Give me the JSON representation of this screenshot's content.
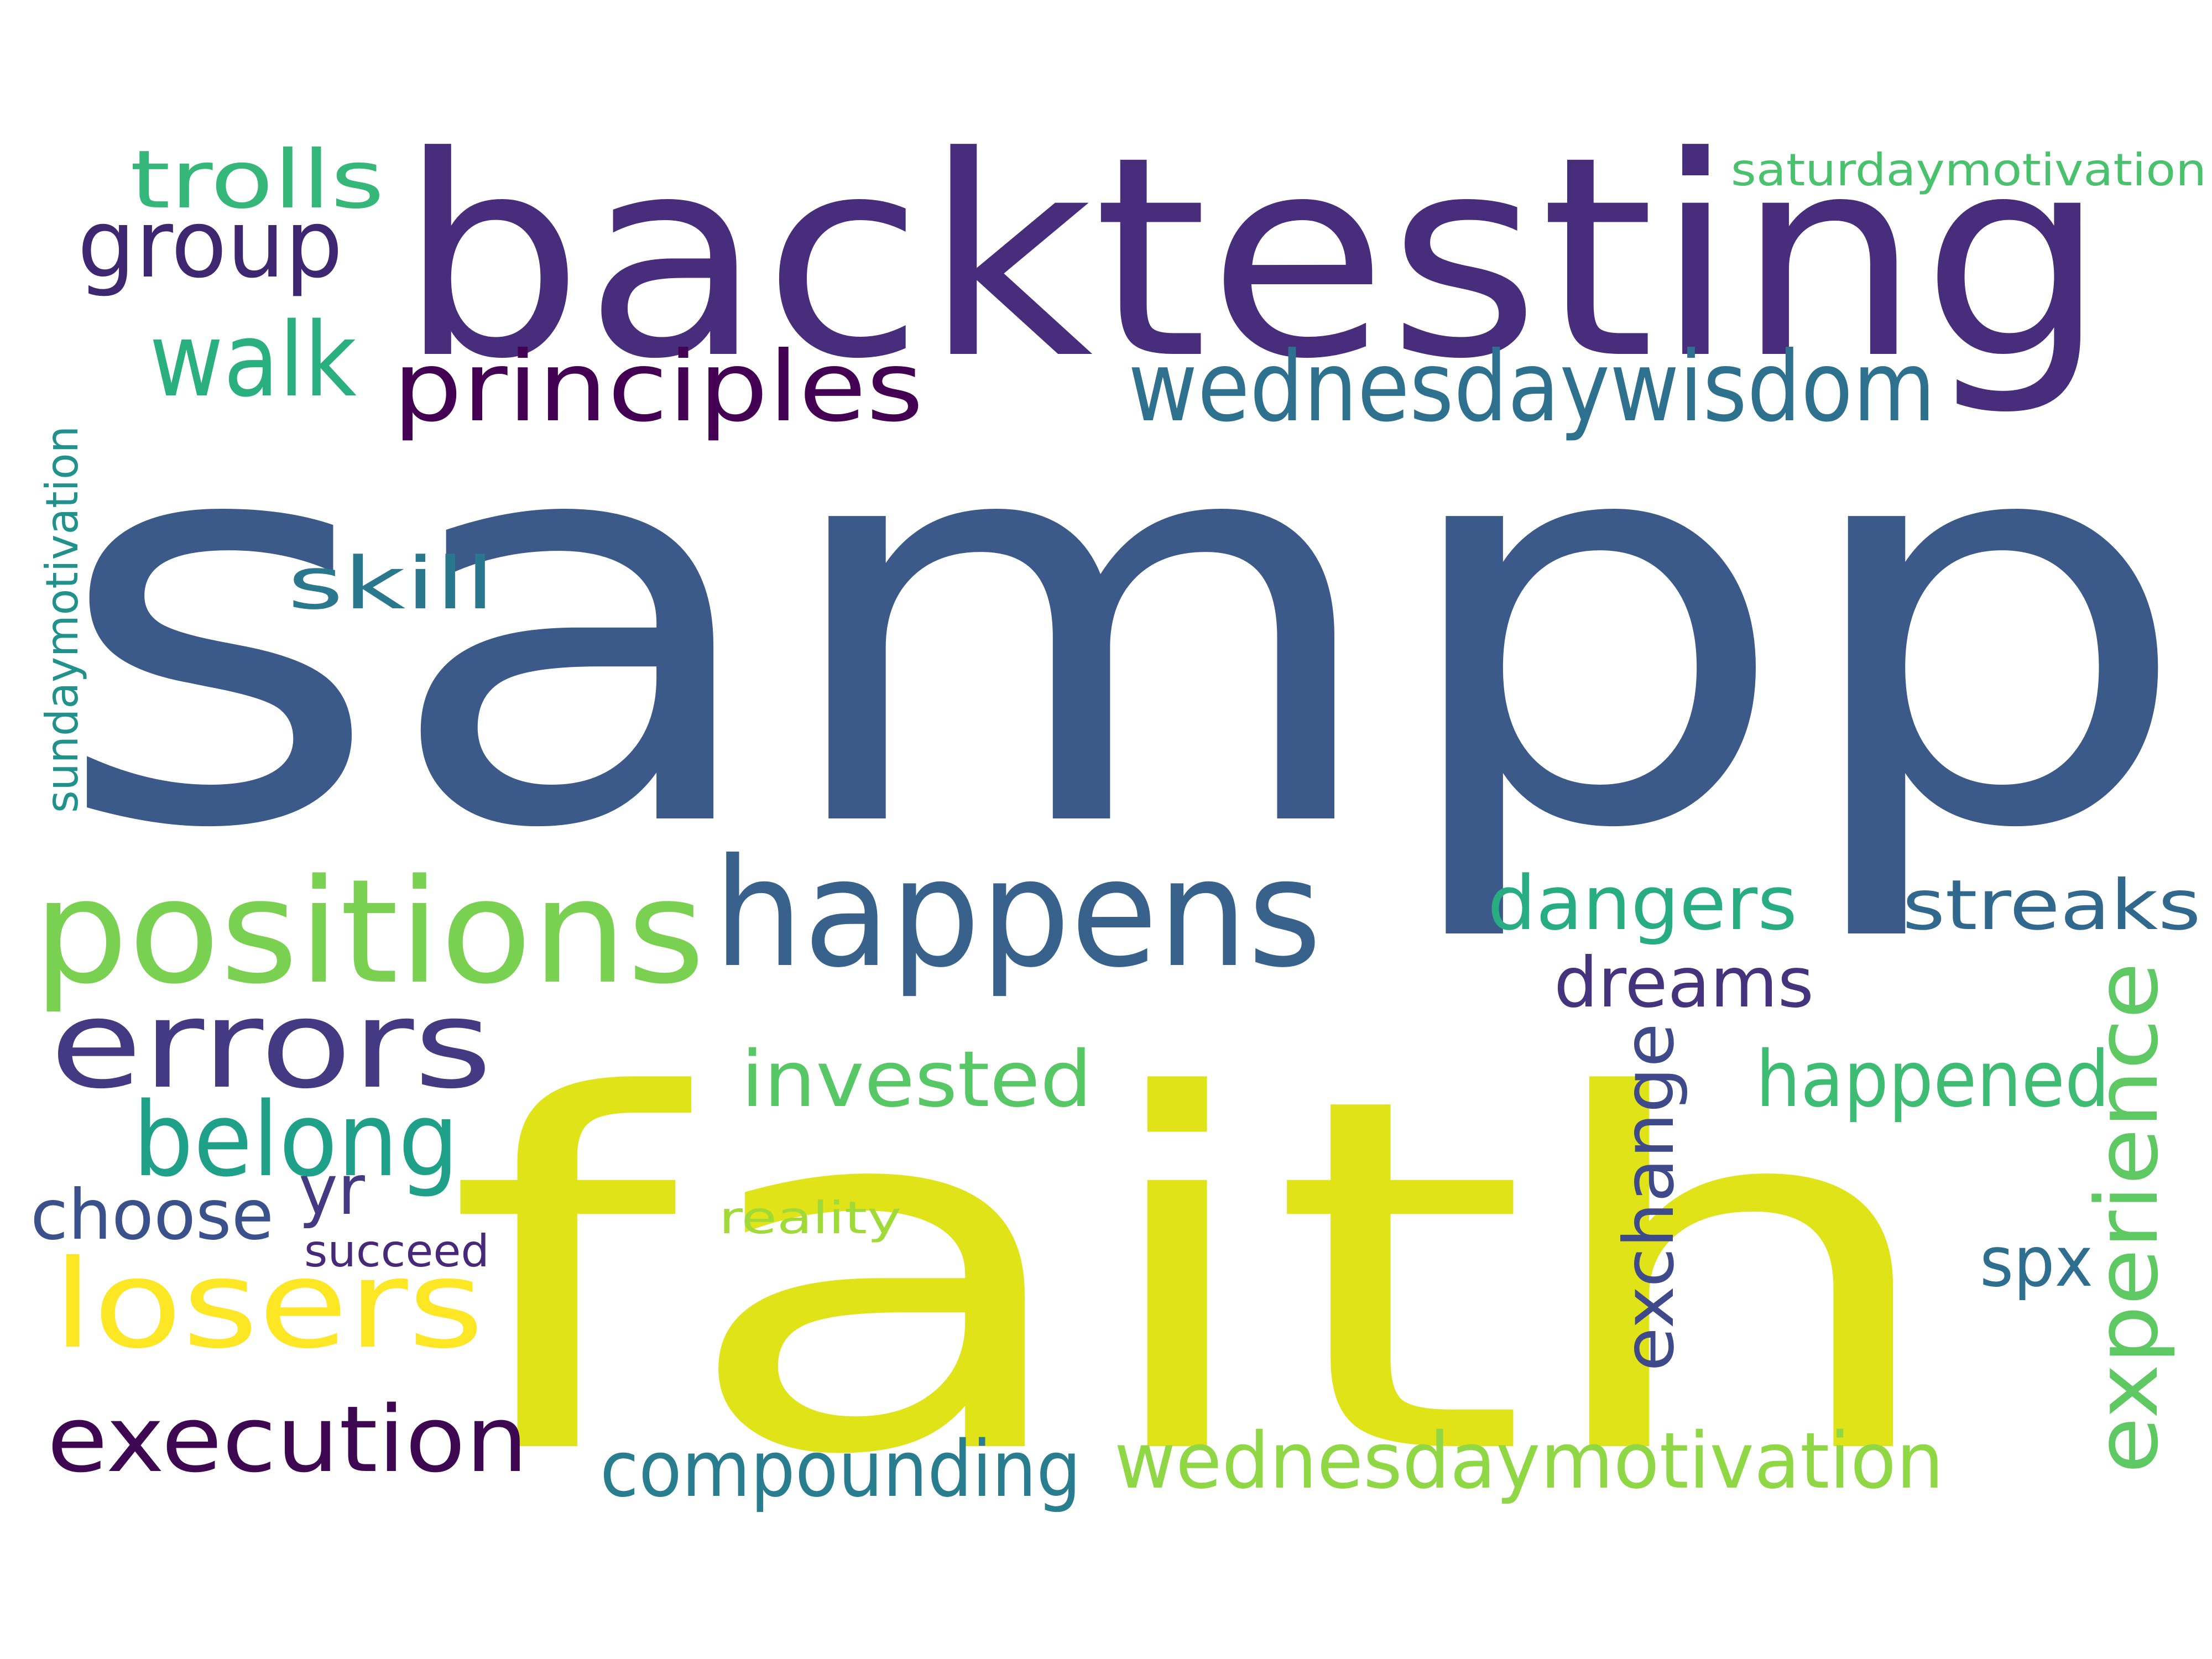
{
  "words": [
    {
      "text": "sampp",
      "color": "#3b5a8a",
      "orientation": "horizontal"
    },
    {
      "text": "faith",
      "color": "#dfe318",
      "orientation": "horizontal"
    },
    {
      "text": "backtesting",
      "color": "#472d7b",
      "orientation": "horizontal"
    },
    {
      "text": "happens",
      "color": "#38618c",
      "orientation": "horizontal"
    },
    {
      "text": "positions",
      "color": "#7ad151",
      "orientation": "horizontal"
    },
    {
      "text": "errors",
      "color": "#443a83",
      "orientation": "horizontal"
    },
    {
      "text": "losers",
      "color": "#fde725",
      "orientation": "horizontal"
    },
    {
      "text": "wednesdaywisdom",
      "color": "#2d718e",
      "orientation": "horizontal"
    },
    {
      "text": "principles",
      "color": "#440154",
      "orientation": "horizontal"
    },
    {
      "text": "execution",
      "color": "#3e0751",
      "orientation": "horizontal"
    },
    {
      "text": "wednesdaymotivation",
      "color": "#8fd744",
      "orientation": "horizontal"
    },
    {
      "text": "compounding",
      "color": "#287d8e",
      "orientation": "horizontal"
    },
    {
      "text": "belong",
      "color": "#1fa088",
      "orientation": "horizontal"
    },
    {
      "text": "walk",
      "color": "#2ab07f",
      "orientation": "horizontal"
    },
    {
      "text": "group",
      "color": "#3e2670",
      "orientation": "horizontal"
    },
    {
      "text": "trolls",
      "color": "#35b779",
      "orientation": "horizontal"
    },
    {
      "text": "experience",
      "color": "#5ec962",
      "orientation": "vertical"
    },
    {
      "text": "exchange",
      "color": "#3e4a89",
      "orientation": "vertical"
    },
    {
      "text": "invested",
      "color": "#58c765",
      "orientation": "horizontal"
    },
    {
      "text": "happened",
      "color": "#3fbc73",
      "orientation": "horizontal"
    },
    {
      "text": "dangers",
      "color": "#27ad81",
      "orientation": "horizontal"
    },
    {
      "text": "streaks",
      "color": "#31688e",
      "orientation": "horizontal"
    },
    {
      "text": "dreams",
      "color": "#46337e",
      "orientation": "horizontal"
    },
    {
      "text": "skill",
      "color": "#2a788e",
      "orientation": "horizontal"
    },
    {
      "text": "choose",
      "color": "#3b518b",
      "orientation": "horizontal"
    },
    {
      "text": "yr",
      "color": "#443983",
      "orientation": "horizontal"
    },
    {
      "text": "spx",
      "color": "#2e6e8e",
      "orientation": "horizontal"
    },
    {
      "text": "sundaymotivation",
      "color": "#21918c",
      "orientation": "vertical"
    },
    {
      "text": "saturdaymotivation",
      "color": "#4ac16d",
      "orientation": "horizontal"
    },
    {
      "text": "reality",
      "color": "#a0da39",
      "orientation": "horizontal"
    },
    {
      "text": "succeed",
      "color": "#482878",
      "orientation": "horizontal"
    }
  ]
}
